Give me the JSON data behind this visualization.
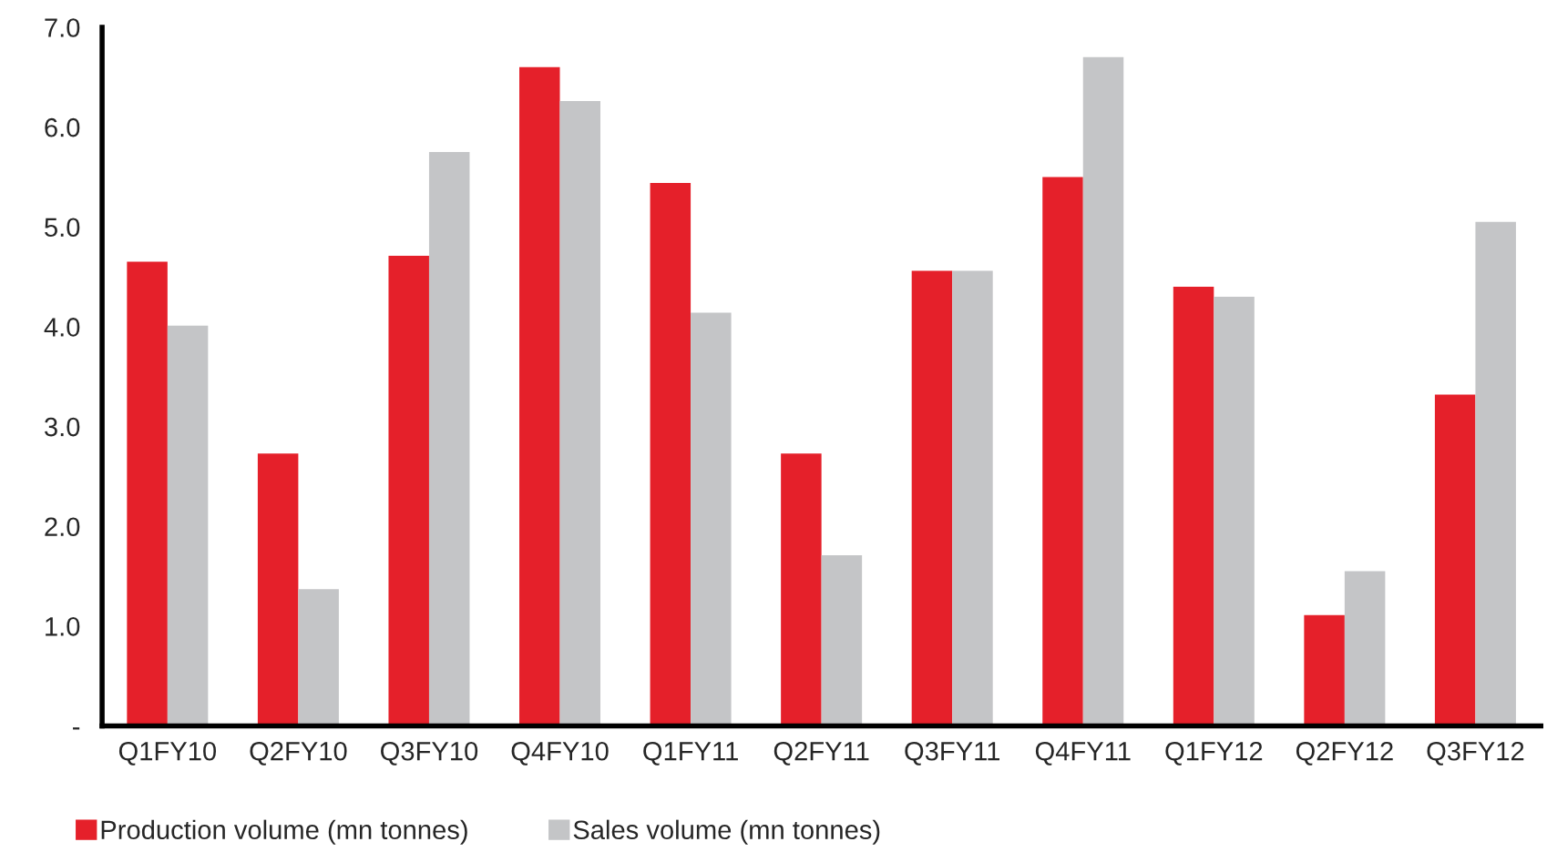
{
  "chart_data": {
    "type": "bar",
    "categories": [
      "Q1FY10",
      "Q2FY10",
      "Q3FY10",
      "Q4FY10",
      "Q1FY11",
      "Q2FY11",
      "Q3FY11",
      "Q4FY11",
      "Q1FY12",
      "Q2FY12",
      "Q3FY12"
    ],
    "series": [
      {
        "name": "Production volume (mn tonnes)",
        "color": "#e5202a",
        "values": [
          4.65,
          2.73,
          4.71,
          6.6,
          5.44,
          2.73,
          4.56,
          5.5,
          4.4,
          1.11,
          3.32
        ]
      },
      {
        "name": "Sales volume (mn tonnes)",
        "color": "#c4c5c7",
        "values": [
          4.01,
          1.37,
          5.75,
          6.26,
          4.14,
          1.71,
          4.56,
          6.7,
          4.3,
          1.55,
          5.05
        ]
      }
    ],
    "ylim": [
      0,
      7
    ],
    "yticks": [
      {
        "value": 0,
        "label": "-"
      },
      {
        "value": 1,
        "label": "1.0"
      },
      {
        "value": 2,
        "label": "2.0"
      },
      {
        "value": 3,
        "label": "3.0"
      },
      {
        "value": 4,
        "label": "4.0"
      },
      {
        "value": 5,
        "label": "5.0"
      },
      {
        "value": 6,
        "label": "6.0"
      },
      {
        "value": 7,
        "label": "7.0"
      }
    ],
    "grid": false,
    "legend": "bottom"
  }
}
